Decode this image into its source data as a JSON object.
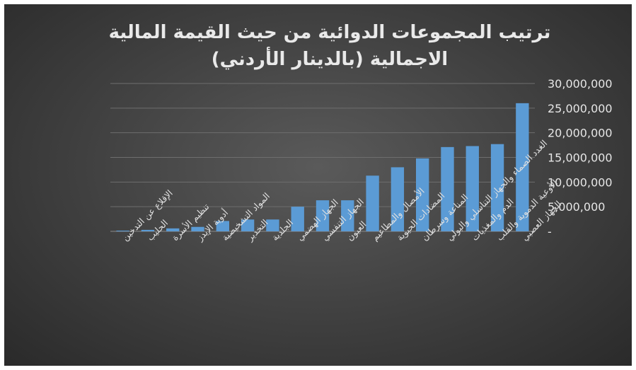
{
  "chart_data": {
    "type": "bar",
    "title_line1": "ترتيب المجموعات الدوائية من حيث القيمة المالية",
    "title_line2": "الاجمالية (بالدينار الأردني)",
    "xlabel": "",
    "ylabel": "",
    "ylim": [
      0,
      30000000
    ],
    "yticks": [
      0,
      5000000,
      10000000,
      15000000,
      20000000,
      25000000,
      30000000
    ],
    "ytick_labels": [
      "-",
      "5,000,000",
      "10,000,000",
      "15,000,000",
      "20,000,000",
      "25,000,000",
      "30,000,000"
    ],
    "grid": true,
    "bar_color": "#5b9bd5",
    "categories": [
      "الإقلاع عن التدخين",
      "الحليب",
      "تنظيم الأسرة",
      "أدوية الإيدز",
      "المواد التشخيصية",
      "التخدير",
      "الجلدية",
      "الجهاز الهضمي",
      "الجهاز التنفسي",
      "العيون",
      "الأمصال والمطاعيم",
      "المضادات الحيوية",
      "المناعة وسرطان",
      "الغدد الصماء والجهاز التناسلي والبولي",
      "الدم والمغذيات",
      "الأوعية الدموية والقلب",
      "الجهاز العصبي"
    ],
    "values": [
      150000,
      300000,
      600000,
      900000,
      2100000,
      2400000,
      2400000,
      5000000,
      6300000,
      6300000,
      11300000,
      13000000,
      14800000,
      17100000,
      17300000,
      17700000,
      26000000
    ]
  }
}
